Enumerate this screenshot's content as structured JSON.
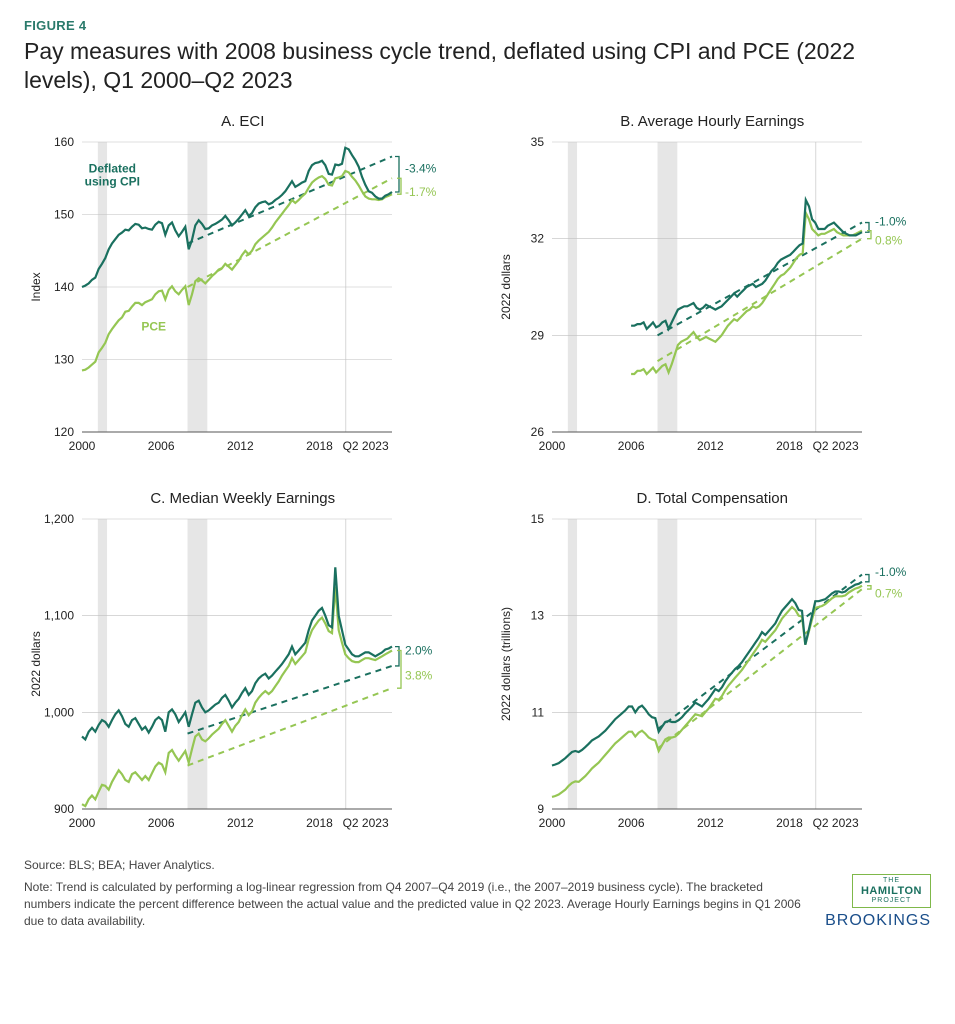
{
  "figure_label": "FIGURE 4",
  "figure_title": "Pay measures with 2008 business cycle trend, deflated using CPI and PCE (2022 levels), Q1 2000–Q2 2023",
  "colors": {
    "cpi": "#1a705f",
    "pce": "#95c653",
    "grid": "#bfbfbf",
    "recession": "#e6e6e6",
    "axis": "#555555",
    "bg": "#ffffff"
  },
  "font": {
    "tick": 12,
    "axis_label": 12,
    "panel_title": 15
  },
  "x_domain": [
    2000,
    2023.5
  ],
  "x_ticks": [
    2000,
    2006,
    2012,
    2018
  ],
  "x_tick_last": "Q2 2023",
  "recessions": [
    [
      2001.2,
      2001.9
    ],
    [
      2008.0,
      2009.5
    ]
  ],
  "trend_xrange": [
    2008.0,
    2023.5
  ],
  "panels": [
    {
      "key": "A",
      "title": "A. ECI",
      "y_label": "Index",
      "y_domain": [
        120,
        160
      ],
      "y_ticks": [
        120,
        130,
        140,
        150,
        160
      ],
      "show_series_labels": true,
      "cpi_label": "Deflated\nusing CPI",
      "pce_label": "PCE",
      "cpi": [
        140,
        140.2,
        140.5,
        141,
        141.3,
        142.5,
        143.2,
        144,
        145.2,
        146,
        146.6,
        147.2,
        147.5,
        147.9,
        147.8,
        148.3,
        148.7,
        148.6,
        148.1,
        148.2,
        148.0,
        147.9,
        148.6,
        149,
        148.8,
        147.2,
        148.5,
        148.9,
        147.8,
        147.0,
        147.6,
        148.3,
        145.2,
        146.5,
        148.5,
        149.2,
        148.7,
        148.0,
        148.1,
        148.5,
        148.7,
        149,
        149.3,
        149.8,
        149.2,
        148.5,
        148.9,
        149.4,
        150.0,
        150.6,
        149.8,
        150.2,
        151,
        151.5,
        151.7,
        151.8,
        151.4,
        151.6,
        152,
        152.3,
        152.7,
        153.2,
        153.9,
        154.6,
        153.8,
        154.1,
        154.4,
        154.6,
        156.0,
        156.8,
        157.1,
        157.2,
        157.4,
        156.8,
        155.6,
        155.5,
        156.9,
        156.8,
        157.0,
        159.2,
        159.0,
        158.2,
        157.5,
        156.6,
        155.2,
        154.1,
        153.2,
        153,
        152.5,
        152.2,
        152.2,
        152.6,
        152.8,
        153.1
      ],
      "pce": [
        128.5,
        128.6,
        128.9,
        129.3,
        129.7,
        131.0,
        131.6,
        132.3,
        133.5,
        134.2,
        134.8,
        135.4,
        135.8,
        136.6,
        136.7,
        137.3,
        137.8,
        137.8,
        137.5,
        137.9,
        138.1,
        138.3,
        139.0,
        139.4,
        139.5,
        138.3,
        139.6,
        140.1,
        139.4,
        139.0,
        139.6,
        140.1,
        137.5,
        139.0,
        140.8,
        141.2,
        140.9,
        140.5,
        141.0,
        141.5,
        141.9,
        142.4,
        142.6,
        143.2,
        142.8,
        142.4,
        143.0,
        143.6,
        144.4,
        145.0,
        144.5,
        145.0,
        145.9,
        146.4,
        146.8,
        147.2,
        147.6,
        148.2,
        148.9,
        149.5,
        150.1,
        150.7,
        151.3,
        152.0,
        151.6,
        152.0,
        152.5,
        152.9,
        153.7,
        154.4,
        154.8,
        155.1,
        155.3,
        154.9,
        154.1,
        154.0,
        155.0,
        155.1,
        155.3,
        156.0,
        155.8,
        155.2,
        154.7,
        154.0,
        153.2,
        152.5,
        152.2,
        152.1,
        152.1,
        152.0,
        152.1,
        152.4,
        152.6,
        152.8
      ],
      "cpi_trend": [
        146,
        158
      ],
      "pce_trend": [
        140,
        155
      ],
      "pct_cpi": "-3.4%",
      "pct_pce": "-1.7%"
    },
    {
      "key": "B",
      "title": "B. Average Hourly Earnings",
      "y_label": "2022 dollars",
      "y_domain": [
        26,
        35
      ],
      "y_ticks": [
        26,
        29,
        32,
        35
      ],
      "x_start": 2006,
      "cpi": [
        29.3,
        29.3,
        29.35,
        29.35,
        29.4,
        29.2,
        29.3,
        29.4,
        29.25,
        29.3,
        29.4,
        29.45,
        29.2,
        29.4,
        29.6,
        29.8,
        29.85,
        29.9,
        29.9,
        29.95,
        30.0,
        29.85,
        29.8,
        29.85,
        29.95,
        29.9,
        29.85,
        29.8,
        29.85,
        29.9,
        30.0,
        30.1,
        30.2,
        30.3,
        30.2,
        30.3,
        30.4,
        30.5,
        30.55,
        30.6,
        30.5,
        30.55,
        30.6,
        30.7,
        30.85,
        31.0,
        31.1,
        31.25,
        31.35,
        31.4,
        31.45,
        31.5,
        31.6,
        31.7,
        31.8,
        31.85,
        33.2,
        33.0,
        32.6,
        32.5,
        32.3,
        32.3,
        32.3,
        32.4,
        32.45,
        32.5,
        32.4,
        32.3,
        32.2,
        32.15,
        32.1,
        32.1,
        32.1,
        32.15,
        32.2
      ],
      "pce": [
        27.8,
        27.8,
        27.9,
        27.9,
        27.95,
        27.8,
        27.9,
        28.0,
        27.85,
        27.95,
        28.05,
        28.1,
        27.85,
        28.1,
        28.4,
        28.7,
        28.8,
        28.85,
        28.9,
        29.0,
        29.1,
        28.95,
        28.85,
        28.9,
        28.95,
        28.9,
        28.85,
        28.8,
        28.9,
        29.0,
        29.15,
        29.3,
        29.4,
        29.5,
        29.45,
        29.55,
        29.65,
        29.75,
        29.8,
        29.9,
        29.85,
        29.9,
        30.0,
        30.15,
        30.3,
        30.45,
        30.6,
        30.75,
        30.85,
        30.9,
        31.0,
        31.1,
        31.25,
        31.4,
        31.5,
        31.55,
        32.8,
        32.6,
        32.3,
        32.2,
        32.1,
        32.15,
        32.15,
        32.2,
        32.25,
        32.3,
        32.2,
        32.15,
        32.1,
        32.1,
        32.1,
        32.1,
        32.15,
        32.2,
        32.25
      ],
      "cpi_trend": [
        29.0,
        32.5
      ],
      "pce_trend": [
        28.2,
        32.0
      ],
      "pct_cpi": "-1.0%",
      "pct_pce": "0.8%"
    },
    {
      "key": "C",
      "title": "C. Median Weekly Earnings",
      "y_label": "2022 dollars",
      "y_domain": [
        900,
        1200
      ],
      "y_ticks": [
        900,
        1000,
        1100,
        1200
      ],
      "cpi": [
        975,
        972,
        980,
        984,
        980,
        987,
        992,
        990,
        985,
        992,
        998,
        1002,
        996,
        988,
        985,
        992,
        994,
        988,
        982,
        985,
        979,
        985,
        992,
        995,
        992,
        980,
        1000,
        1003,
        998,
        990,
        995,
        1000,
        985,
        998,
        1010,
        1012,
        1005,
        1000,
        1002,
        1005,
        1008,
        1010,
        1015,
        1018,
        1012,
        1005,
        1010,
        1014,
        1020,
        1025,
        1018,
        1022,
        1030,
        1035,
        1038,
        1040,
        1035,
        1038,
        1042,
        1046,
        1050,
        1055,
        1060,
        1068,
        1060,
        1064,
        1068,
        1072,
        1085,
        1095,
        1100,
        1105,
        1108,
        1100,
        1090,
        1088,
        1150,
        1100,
        1085,
        1070,
        1065,
        1060,
        1058,
        1058,
        1060,
        1062,
        1062,
        1060,
        1058,
        1060,
        1062,
        1065,
        1066,
        1068
      ],
      "pce": [
        905,
        903,
        910,
        914,
        910,
        918,
        925,
        924,
        920,
        928,
        934,
        940,
        936,
        930,
        928,
        936,
        938,
        934,
        930,
        934,
        930,
        937,
        944,
        948,
        946,
        938,
        958,
        961,
        955,
        950,
        955,
        960,
        948,
        962,
        975,
        978,
        972,
        970,
        973,
        977,
        980,
        983,
        988,
        992,
        986,
        980,
        986,
        990,
        997,
        1003,
        997,
        1001,
        1010,
        1015,
        1019,
        1022,
        1019,
        1022,
        1027,
        1032,
        1038,
        1043,
        1048,
        1056,
        1050,
        1054,
        1058,
        1062,
        1076,
        1085,
        1090,
        1095,
        1098,
        1092,
        1084,
        1082,
        1130,
        1085,
        1072,
        1060,
        1056,
        1053,
        1052,
        1052,
        1054,
        1056,
        1056,
        1055,
        1054,
        1056,
        1058,
        1060,
        1062,
        1064
      ],
      "cpi_trend": [
        978,
        1048
      ],
      "pce_trend": [
        945,
        1025
      ],
      "pct_cpi": "2.0%",
      "pct_pce": "3.8%"
    },
    {
      "key": "D",
      "title": "D. Total Compensation",
      "y_label": "2022 dollars (trillions)",
      "y_domain": [
        9,
        15
      ],
      "y_ticks": [
        9,
        11,
        13,
        15
      ],
      "cpi": [
        9.9,
        9.92,
        9.95,
        10.0,
        10.05,
        10.12,
        10.18,
        10.2,
        10.18,
        10.22,
        10.28,
        10.35,
        10.42,
        10.46,
        10.5,
        10.56,
        10.62,
        10.7,
        10.78,
        10.86,
        10.92,
        10.98,
        11.04,
        11.12,
        11.12,
        11.0,
        11.1,
        11.14,
        11.06,
        10.96,
        10.9,
        10.88,
        10.6,
        10.7,
        10.8,
        10.82,
        10.8,
        10.8,
        10.84,
        10.9,
        10.98,
        11.05,
        11.12,
        11.2,
        11.16,
        11.12,
        11.2,
        11.28,
        11.38,
        11.48,
        11.44,
        11.52,
        11.64,
        11.74,
        11.82,
        11.9,
        11.96,
        12.04,
        12.14,
        12.24,
        12.34,
        12.44,
        12.54,
        12.66,
        12.6,
        12.68,
        12.76,
        12.84,
        12.98,
        13.1,
        13.18,
        13.26,
        13.34,
        13.26,
        13.12,
        13.1,
        12.4,
        12.7,
        13.0,
        13.3,
        13.3,
        13.32,
        13.34,
        13.4,
        13.46,
        13.5,
        13.5,
        13.48,
        13.5,
        13.56,
        13.6,
        13.64,
        13.66,
        13.7
      ],
      "pce": [
        9.25,
        9.27,
        9.3,
        9.35,
        9.4,
        9.48,
        9.54,
        9.57,
        9.56,
        9.62,
        9.68,
        9.76,
        9.84,
        9.9,
        9.96,
        10.04,
        10.12,
        10.2,
        10.28,
        10.36,
        10.42,
        10.48,
        10.54,
        10.6,
        10.6,
        10.5,
        10.58,
        10.62,
        10.56,
        10.48,
        10.44,
        10.42,
        10.2,
        10.32,
        10.44,
        10.48,
        10.48,
        10.5,
        10.56,
        10.64,
        10.72,
        10.8,
        10.88,
        10.96,
        10.94,
        10.92,
        11.0,
        11.08,
        11.18,
        11.28,
        11.26,
        11.34,
        11.46,
        11.56,
        11.64,
        11.72,
        11.8,
        11.88,
        11.98,
        12.08,
        12.18,
        12.28,
        12.38,
        12.5,
        12.46,
        12.54,
        12.62,
        12.7,
        12.82,
        12.94,
        13.02,
        13.1,
        13.18,
        13.12,
        13.0,
        12.98,
        12.4,
        12.66,
        12.92,
        13.16,
        13.18,
        13.2,
        13.24,
        13.3,
        13.36,
        13.4,
        13.4,
        13.4,
        13.42,
        13.48,
        13.52,
        13.56,
        13.58,
        13.62
      ],
      "cpi_trend": [
        10.65,
        13.85
      ],
      "pce_trend": [
        10.25,
        13.55
      ],
      "pct_cpi": "-1.0%",
      "pct_pce": "0.7%"
    }
  ],
  "source": "Source: BLS; BEA; Haver Analytics.",
  "note": "Note: Trend is calculated by performing a log-linear regression from Q4 2007–Q4 2019 (i.e., the 2007–2019 business cycle). The bracketed numbers indicate the percent difference between the actual value and the predicted value in Q2 2023. Average Hourly Earnings begins in Q1 2006 due to data availability.",
  "logos": {
    "hamilton_the": "THE",
    "hamilton_big": "HAMILTON",
    "hamilton_sub": "PROJECT",
    "brookings": "BROOKINGS"
  }
}
